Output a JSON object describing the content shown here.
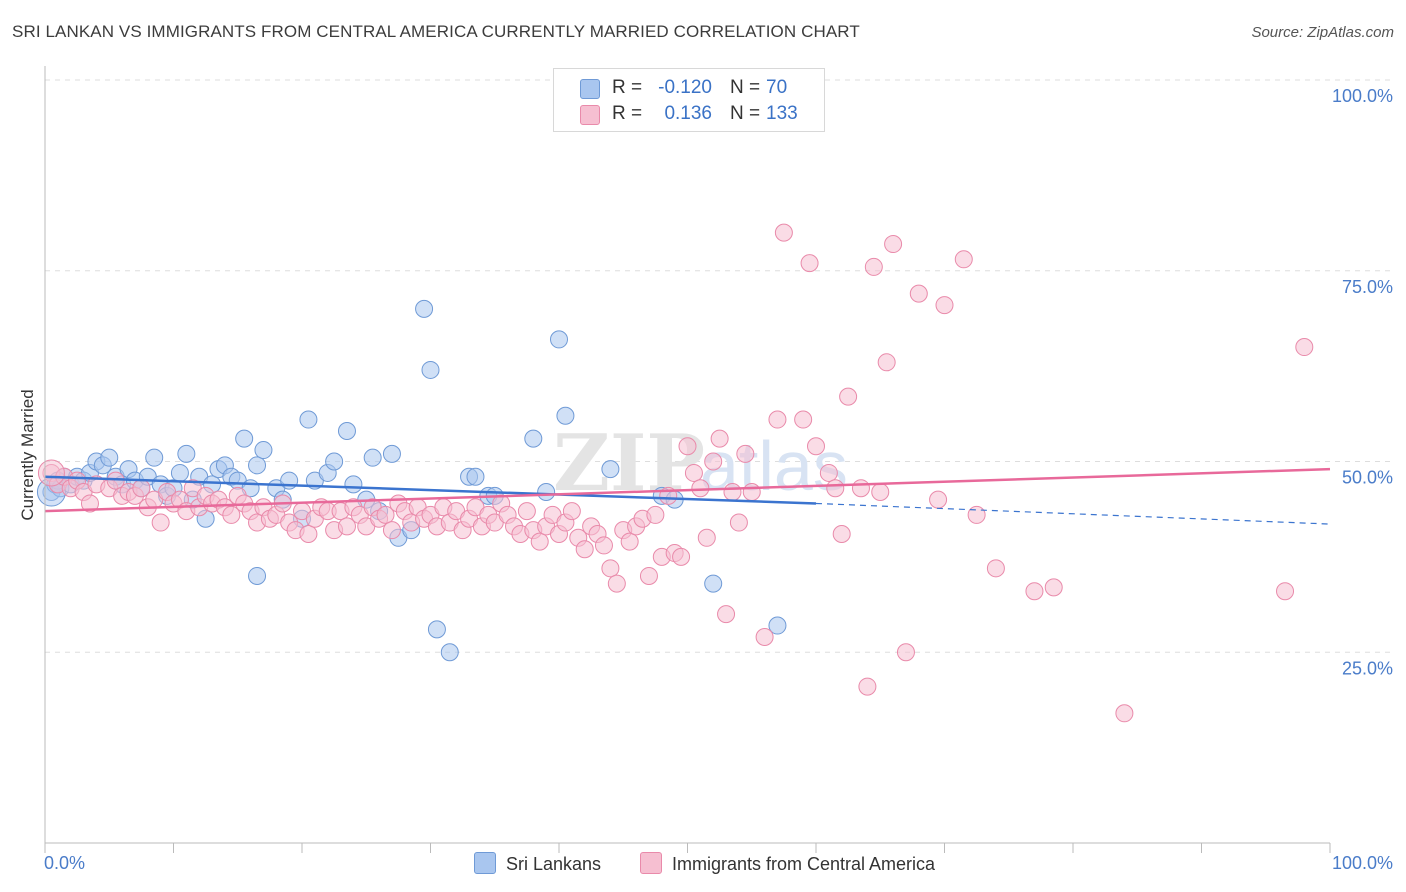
{
  "title": "SRI LANKAN VS IMMIGRANTS FROM CENTRAL AMERICA CURRENTLY MARRIED CORRELATION CHART",
  "source": "Source: ZipAtlas.com",
  "watermark": "ZIPatlas",
  "legend": {
    "rows": [
      {
        "r_label": "R =",
        "r_value": "-0.120",
        "n_label": "N =",
        "n_value": "70"
      },
      {
        "r_label": "R =",
        "r_value": "0.136",
        "n_label": "N =",
        "n_value": "133"
      }
    ]
  },
  "bottom_legend": [
    "Sri Lankans",
    "Immigrants from Central America"
  ],
  "colors": {
    "blue_fill": "#a9c6ef",
    "blue_stroke": "#6f9ad6",
    "blue_line": "#3b74cf",
    "pink_fill": "#f6bfd1",
    "pink_stroke": "#e98aaa",
    "pink_line": "#e8699a",
    "grid": "#dddddd",
    "tick_text": "#4a7cc9"
  },
  "chart_data": {
    "type": "scatter",
    "ylabel": "Currently Married",
    "xlabel": "",
    "xlim": [
      0,
      100
    ],
    "ylim": [
      0,
      100
    ],
    "x_tick_labels": [
      "0.0%",
      "100.0%"
    ],
    "y_ticks": [
      {
        "value": 100,
        "label": "100.0%"
      },
      {
        "value": 75,
        "label": "75.0%"
      },
      {
        "value": 50,
        "label": "50.0%"
      },
      {
        "value": 25,
        "label": "25.0%"
      }
    ],
    "grid": true,
    "legend_position": "top-center",
    "series": [
      {
        "name": "Sri Lankans",
        "color": "#a9c6ef",
        "R": -0.12,
        "N": 70,
        "trend": {
          "x0": 0,
          "y0": 48.0,
          "x1": 60,
          "y1": 44.5,
          "dash_to_x": 100,
          "dash_to_y": 41.8
        },
        "points": [
          [
            0.5,
            46.0
          ],
          [
            0.8,
            47.0
          ],
          [
            1.0,
            47.5
          ],
          [
            1.2,
            46.5
          ],
          [
            1.5,
            48.0
          ],
          [
            2.0,
            47.0
          ],
          [
            2.5,
            48.0
          ],
          [
            3.0,
            47.5
          ],
          [
            3.5,
            48.5
          ],
          [
            4.0,
            50.0
          ],
          [
            4.5,
            49.5
          ],
          [
            5.0,
            50.5
          ],
          [
            5.5,
            48.0
          ],
          [
            6.0,
            47.0
          ],
          [
            6.5,
            49.0
          ],
          [
            7.0,
            47.5
          ],
          [
            7.5,
            46.5
          ],
          [
            8.0,
            48.0
          ],
          [
            8.5,
            50.5
          ],
          [
            9.0,
            47.0
          ],
          [
            9.5,
            45.5
          ],
          [
            10.0,
            46.5
          ],
          [
            10.5,
            48.5
          ],
          [
            11.0,
            51.0
          ],
          [
            11.5,
            45.0
          ],
          [
            12.0,
            48.0
          ],
          [
            12.5,
            42.5
          ],
          [
            13.0,
            47.0
          ],
          [
            13.5,
            49.0
          ],
          [
            14.0,
            49.5
          ],
          [
            14.5,
            48.0
          ],
          [
            15.0,
            47.5
          ],
          [
            15.5,
            53.0
          ],
          [
            16.0,
            46.5
          ],
          [
            16.5,
            49.5
          ],
          [
            17.0,
            51.5
          ],
          [
            18.0,
            46.5
          ],
          [
            18.5,
            45.0
          ],
          [
            19.0,
            47.5
          ],
          [
            20.0,
            42.5
          ],
          [
            20.5,
            55.5
          ],
          [
            21.0,
            47.5
          ],
          [
            22.0,
            48.5
          ],
          [
            22.5,
            50.0
          ],
          [
            23.5,
            54.0
          ],
          [
            24.0,
            47.0
          ],
          [
            25.0,
            45.0
          ],
          [
            25.5,
            50.5
          ],
          [
            26.0,
            43.5
          ],
          [
            27.0,
            51.0
          ],
          [
            27.5,
            40.0
          ],
          [
            28.5,
            41.0
          ],
          [
            29.5,
            70.0
          ],
          [
            30.0,
            62.0
          ],
          [
            30.5,
            28.0
          ],
          [
            31.5,
            25.0
          ],
          [
            33.0,
            48.0
          ],
          [
            33.5,
            48.0
          ],
          [
            34.5,
            45.5
          ],
          [
            35.0,
            45.5
          ],
          [
            38.0,
            53.0
          ],
          [
            39.0,
            46.0
          ],
          [
            40.0,
            66.0
          ],
          [
            40.5,
            56.0
          ],
          [
            16.5,
            35.0
          ],
          [
            44.0,
            49.0
          ],
          [
            48.0,
            45.5
          ],
          [
            49.0,
            45.0
          ],
          [
            52.0,
            34.0
          ],
          [
            57.0,
            28.5
          ]
        ]
      },
      {
        "name": "Immigrants from Central America",
        "color": "#f6bfd1",
        "R": 0.136,
        "N": 133,
        "trend": {
          "x0": 0,
          "y0": 43.5,
          "x1": 100,
          "y1": 49.0
        },
        "points": [
          [
            0.5,
            48.5
          ],
          [
            1.0,
            47.0
          ],
          [
            1.5,
            48.0
          ],
          [
            2.0,
            46.5
          ],
          [
            2.5,
            47.5
          ],
          [
            3.0,
            46.0
          ],
          [
            3.5,
            44.5
          ],
          [
            4.0,
            47.0
          ],
          [
            5.0,
            46.5
          ],
          [
            5.5,
            47.5
          ],
          [
            6.0,
            45.5
          ],
          [
            6.5,
            46.0
          ],
          [
            7.0,
            45.5
          ],
          [
            7.5,
            46.5
          ],
          [
            8.0,
            44.0
          ],
          [
            8.5,
            45.0
          ],
          [
            9.0,
            42.0
          ],
          [
            9.5,
            46.0
          ],
          [
            10.0,
            44.5
          ],
          [
            10.5,
            45.0
          ],
          [
            11.0,
            43.5
          ],
          [
            11.5,
            46.5
          ],
          [
            12.0,
            44.0
          ],
          [
            12.5,
            45.5
          ],
          [
            13.0,
            44.5
          ],
          [
            13.5,
            45.0
          ],
          [
            14.0,
            44.0
          ],
          [
            14.5,
            43.0
          ],
          [
            15.0,
            45.5
          ],
          [
            15.5,
            44.5
          ],
          [
            16.0,
            43.5
          ],
          [
            16.5,
            42.0
          ],
          [
            17.0,
            44.0
          ],
          [
            17.5,
            42.5
          ],
          [
            18.0,
            43.0
          ],
          [
            18.5,
            44.5
          ],
          [
            19.0,
            42.0
          ],
          [
            19.5,
            41.0
          ],
          [
            20.0,
            43.5
          ],
          [
            20.5,
            40.5
          ],
          [
            21.0,
            42.5
          ],
          [
            21.5,
            44.0
          ],
          [
            22.0,
            43.5
          ],
          [
            22.5,
            41.0
          ],
          [
            23.0,
            43.5
          ],
          [
            23.5,
            41.5
          ],
          [
            24.0,
            44.0
          ],
          [
            24.5,
            43.0
          ],
          [
            25.0,
            41.5
          ],
          [
            25.5,
            44.0
          ],
          [
            26.0,
            42.5
          ],
          [
            26.5,
            43.0
          ],
          [
            27.0,
            41.0
          ],
          [
            27.5,
            44.5
          ],
          [
            28.0,
            43.5
          ],
          [
            28.5,
            42.0
          ],
          [
            29.0,
            44.0
          ],
          [
            29.5,
            42.5
          ],
          [
            30.0,
            43.0
          ],
          [
            30.5,
            41.5
          ],
          [
            31.0,
            44.0
          ],
          [
            31.5,
            42.0
          ],
          [
            32.0,
            43.5
          ],
          [
            32.5,
            41.0
          ],
          [
            33.0,
            42.5
          ],
          [
            33.5,
            44.0
          ],
          [
            34.0,
            41.5
          ],
          [
            34.5,
            43.0
          ],
          [
            35.0,
            42.0
          ],
          [
            35.5,
            44.5
          ],
          [
            36.0,
            43.0
          ],
          [
            36.5,
            41.5
          ],
          [
            37.0,
            40.5
          ],
          [
            37.5,
            43.5
          ],
          [
            38.0,
            41.0
          ],
          [
            38.5,
            39.5
          ],
          [
            39.0,
            41.5
          ],
          [
            39.5,
            43.0
          ],
          [
            40.0,
            40.5
          ],
          [
            40.5,
            42.0
          ],
          [
            41.0,
            43.5
          ],
          [
            41.5,
            40.0
          ],
          [
            42.0,
            38.5
          ],
          [
            42.5,
            41.5
          ],
          [
            43.0,
            40.5
          ],
          [
            43.5,
            39.0
          ],
          [
            44.0,
            36.0
          ],
          [
            44.5,
            34.0
          ],
          [
            45.0,
            41.0
          ],
          [
            45.5,
            39.5
          ],
          [
            46.0,
            41.5
          ],
          [
            46.5,
            42.5
          ],
          [
            47.0,
            35.0
          ],
          [
            47.5,
            43.0
          ],
          [
            48.0,
            37.5
          ],
          [
            48.5,
            45.5
          ],
          [
            49.0,
            38.0
          ],
          [
            49.5,
            37.5
          ],
          [
            50.0,
            52.0
          ],
          [
            50.5,
            48.5
          ],
          [
            51.0,
            46.5
          ],
          [
            51.5,
            40.0
          ],
          [
            52.0,
            50.0
          ],
          [
            52.5,
            53.0
          ],
          [
            53.0,
            30.0
          ],
          [
            53.5,
            46.0
          ],
          [
            54.0,
            42.0
          ],
          [
            54.5,
            51.0
          ],
          [
            55.0,
            46.0
          ],
          [
            56.0,
            27.0
          ],
          [
            57.0,
            55.5
          ],
          [
            57.5,
            80.0
          ],
          [
            59.0,
            55.5
          ],
          [
            59.5,
            76.0
          ],
          [
            60.0,
            52.0
          ],
          [
            61.0,
            48.5
          ],
          [
            61.5,
            46.5
          ],
          [
            62.0,
            40.5
          ],
          [
            62.5,
            58.5
          ],
          [
            63.5,
            46.5
          ],
          [
            64.0,
            20.5
          ],
          [
            64.5,
            75.5
          ],
          [
            65.0,
            46.0
          ],
          [
            65.5,
            63.0
          ],
          [
            66.0,
            78.5
          ],
          [
            67.0,
            25.0
          ],
          [
            68.0,
            72.0
          ],
          [
            70.0,
            70.5
          ],
          [
            71.5,
            76.5
          ],
          [
            72.5,
            43.0
          ],
          [
            74.0,
            36.0
          ],
          [
            77.0,
            33.0
          ],
          [
            78.5,
            33.5
          ],
          [
            84.0,
            17.0
          ],
          [
            96.5,
            33.0
          ],
          [
            98.0,
            65.0
          ],
          [
            69.5,
            45.0
          ]
        ]
      }
    ]
  }
}
